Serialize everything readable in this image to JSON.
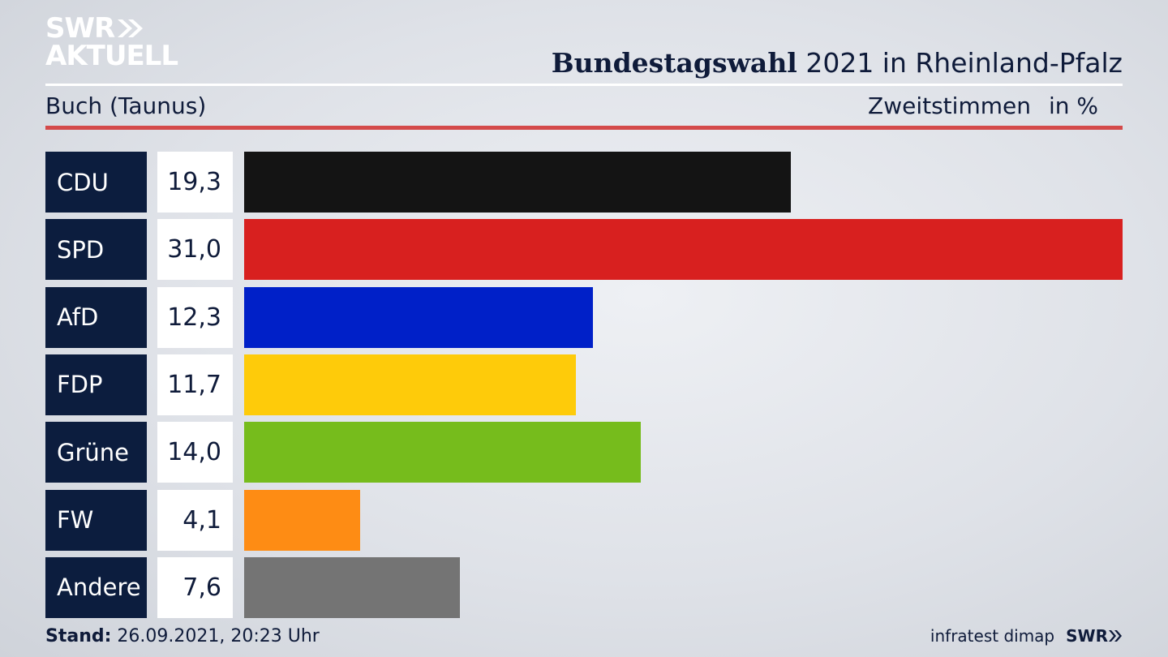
{
  "header": {
    "logo_line1": "SWR",
    "logo_line2": "AKTUELL",
    "title_bold": "Bundestagswahl",
    "title_rest": " 2021 in Rheinland-Pfalz",
    "subtitle": "Buch (Taunus)",
    "measure": "Zweitstimmen",
    "unit": "in %"
  },
  "chart_data": {
    "type": "bar",
    "orientation": "horizontal",
    "categories": [
      "CDU",
      "SPD",
      "AfD",
      "FDP",
      "Grüne",
      "FW",
      "Andere"
    ],
    "values": [
      19.3,
      31.0,
      12.3,
      11.7,
      14.0,
      4.1,
      7.6
    ],
    "value_labels": [
      "19,3",
      "31,0",
      "12,3",
      "11,7",
      "14,0",
      "4,1",
      "7,6"
    ],
    "colors": [
      "#141414",
      "#d8201f",
      "#0020c8",
      "#fecb0a",
      "#76bc1c",
      "#fe8c14",
      "#747474"
    ]
  },
  "footer": {
    "stand_label": "Stand:",
    "stand_value": " 26.09.2021, 20:23 Uhr",
    "source": "infratest dimap",
    "brand": "SWR"
  },
  "icons": {
    "logo_chevron": "double-chevron-right-icon"
  }
}
